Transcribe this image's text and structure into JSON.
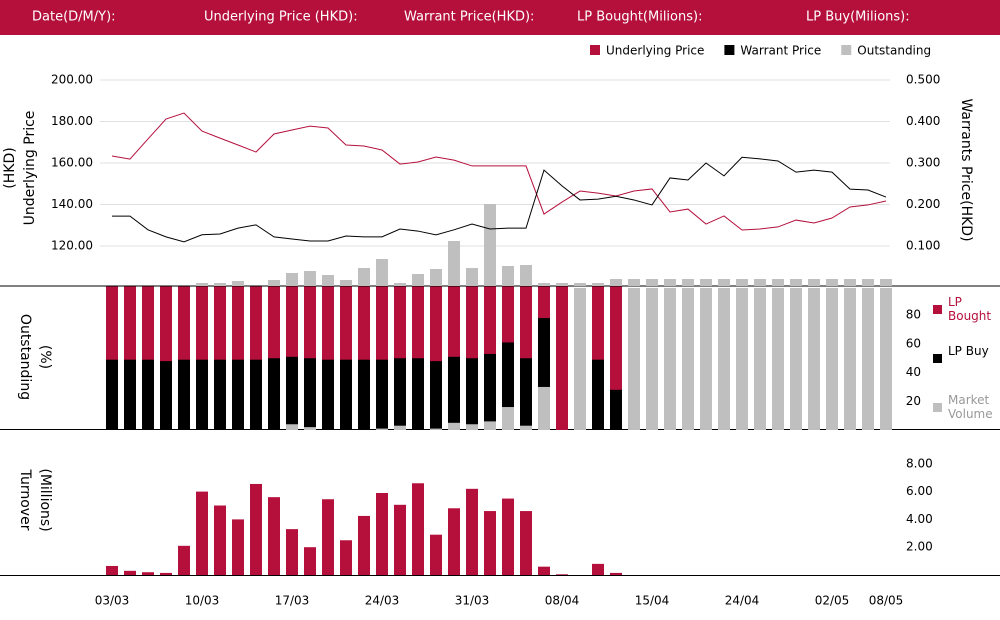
{
  "header": {
    "labels": [
      "Date(D/M/Y):",
      "Underlying Price (HKD):",
      "Warrant  Price(HKD):",
      "LP Bought(Milions):",
      "LP Buy(Milions):"
    ]
  },
  "chart_data": [
    {
      "type": "line",
      "ylabel": [
        "Underlying Price",
        "(HKD)"
      ],
      "y2label": "Warrants  Price(HKD)",
      "ylim": [
        100,
        210
      ],
      "yticks": [
        {
          "value": 120,
          "label": "120.00"
        },
        {
          "value": 140,
          "label": "140.00"
        },
        {
          "value": 160,
          "label": "160.00"
        },
        {
          "value": 180,
          "label": "180.00"
        },
        {
          "value": 200,
          "label": "200.00"
        }
      ],
      "y2lim": [
        0,
        0.55
      ],
      "y2ticks": [
        {
          "value": 0.1,
          "label": "0.100"
        },
        {
          "value": 0.2,
          "label": "0.200"
        },
        {
          "value": 0.3,
          "label": "0.300"
        },
        {
          "value": 0.4,
          "label": "0.400"
        },
        {
          "value": 0.5,
          "label": "0.500"
        }
      ],
      "y3lim": [
        0,
        228
      ],
      "grid": true,
      "legend": "top-right",
      "series": [
        {
          "name": "Underlying Price",
          "type": "line",
          "color": "#b5103c",
          "axis": "y",
          "values": [
            163.4,
            161.9,
            171.6,
            181.2,
            184.1,
            175.4,
            172.0,
            168.7,
            165.3,
            174.0,
            175.9,
            177.8,
            176.9,
            168.7,
            168.2,
            166.3,
            159.5,
            160.5,
            162.9,
            161.4,
            158.6,
            158.6,
            158.6,
            158.6,
            135.4,
            141.2,
            146.5,
            145.5,
            144.1,
            146.5,
            147.5,
            136.4,
            137.8,
            130.6,
            134.5,
            127.7,
            128.2,
            129.2,
            132.5,
            131.1,
            133.5,
            138.8,
            139.8,
            141.7
          ]
        },
        {
          "name": "Warrant  Price",
          "type": "line",
          "color": "#000000",
          "axis": "y2",
          "values": [
            0.172,
            0.172,
            0.139,
            0.122,
            0.11,
            0.127,
            0.129,
            0.143,
            0.151,
            0.122,
            0.117,
            0.112,
            0.112,
            0.124,
            0.122,
            0.122,
            0.141,
            0.136,
            0.127,
            0.139,
            0.153,
            0.141,
            0.143,
            0.143,
            0.283,
            0.245,
            0.211,
            0.213,
            0.22,
            0.211,
            0.199,
            0.264,
            0.259,
            0.3,
            0.269,
            0.314,
            0.31,
            0.305,
            0.278,
            0.283,
            0.278,
            0.237,
            0.235,
            0.218
          ]
        },
        {
          "name": "Outstanding",
          "type": "bar",
          "color": "#bfbfbf",
          "axis": "y3",
          "values": [
            0,
            0,
            0,
            0,
            0,
            3,
            3,
            5,
            0,
            6,
            13,
            15,
            11,
            6,
            18,
            27,
            3,
            12,
            17,
            45,
            18,
            82,
            20,
            21,
            3,
            3,
            3,
            3,
            7,
            7,
            7,
            7,
            7,
            7,
            7,
            7,
            7,
            7,
            7,
            7,
            7,
            7,
            7,
            7
          ]
        }
      ]
    },
    {
      "type": "bar",
      "ylabel": [
        "Outstanding",
        "(%)"
      ],
      "ylim": [
        0,
        100
      ],
      "yticks": [
        20,
        40,
        60,
        80
      ],
      "legend": "right",
      "series": [
        {
          "name": "LP Bought",
          "color": "#b5103c",
          "values": [
            100,
            100,
            100,
            100,
            100,
            100,
            100,
            100,
            100,
            100,
            100,
            100,
            100,
            100,
            100,
            100,
            100,
            100,
            100,
            100,
            100,
            100,
            100,
            100,
            100,
            100,
            null,
            100,
            100,
            null,
            null,
            null,
            null,
            null,
            null,
            null,
            null,
            null,
            null,
            null,
            null,
            null,
            null,
            null
          ]
        },
        {
          "name": "LP Buy",
          "color": "#000000",
          "values": [
            49,
            49,
            49,
            48,
            49,
            49,
            49,
            49,
            49,
            50,
            51,
            50,
            49,
            49,
            49,
            49,
            50,
            50,
            48,
            51,
            50,
            53,
            61,
            50,
            78,
            null,
            null,
            49,
            28,
            null,
            null,
            null,
            null,
            null,
            null,
            null,
            null,
            null,
            null,
            null,
            null,
            null,
            null,
            null
          ]
        },
        {
          "name": "Market Volume",
          "color": "#bfbfbf",
          "values": [
            0,
            0,
            0,
            0,
            0,
            0,
            0,
            0,
            0,
            0,
            4,
            2,
            0,
            0,
            0,
            1,
            3,
            0,
            1,
            5,
            4,
            6,
            16,
            3,
            30,
            null,
            99,
            null,
            null,
            99,
            99,
            99,
            99,
            99,
            99,
            99,
            99,
            99,
            99,
            99,
            99,
            99,
            99,
            99
          ]
        }
      ]
    },
    {
      "type": "bar",
      "ylabel": [
        "Turnover",
        "(Millions)"
      ],
      "color": "#b5103c",
      "ylim": [
        0,
        9
      ],
      "yticks": [
        {
          "value": 2,
          "label": "2.00"
        },
        {
          "value": 4,
          "label": "4.00"
        },
        {
          "value": 6,
          "label": "6.00"
        },
        {
          "value": 8,
          "label": "8.00"
        }
      ],
      "categories": [
        "03/03",
        null,
        null,
        null,
        null,
        "10/03",
        null,
        null,
        null,
        null,
        "17/03",
        null,
        null,
        null,
        null,
        "24/03",
        null,
        null,
        null,
        null,
        "31/03",
        null,
        null,
        null,
        null,
        "08/04",
        null,
        null,
        null,
        null,
        "15/04",
        null,
        null,
        null,
        null,
        "24/04",
        null,
        null,
        null,
        null,
        "02/05",
        null,
        null,
        "08/05"
      ],
      "values": [
        0.65,
        0.3,
        0.2,
        0.15,
        2.1,
        6.0,
        5.0,
        4.0,
        6.55,
        5.6,
        3.3,
        2.0,
        5.45,
        2.5,
        4.25,
        5.9,
        5.05,
        6.6,
        2.9,
        4.8,
        6.2,
        4.6,
        5.5,
        4.6,
        0.6,
        0.05,
        null,
        0.8,
        0.15,
        null,
        null,
        null,
        null,
        null,
        null,
        null,
        null,
        null,
        null,
        null,
        null,
        null,
        null,
        null
      ]
    }
  ]
}
